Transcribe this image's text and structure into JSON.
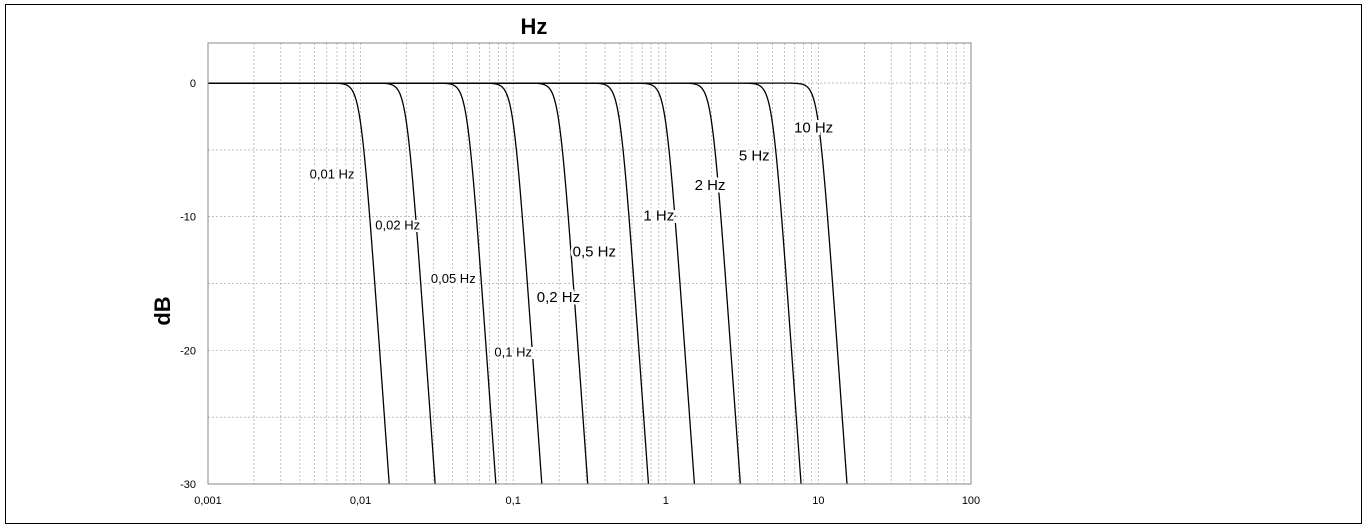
{
  "chart_data": {
    "type": "line",
    "title": "Hz",
    "xlabel": "",
    "ylabel": "dB",
    "xscale": "log",
    "xlim": [
      0.001,
      100
    ],
    "ylim": [
      -30,
      3
    ],
    "x_ticks": [
      "0,001",
      "0,01",
      "0,1",
      "1",
      "10",
      "100"
    ],
    "x_tick_values": [
      0.001,
      0.01,
      0.1,
      1,
      10,
      100
    ],
    "y_ticks": [
      "0",
      "-10",
      "-20",
      "-30"
    ],
    "y_tick_values": [
      0,
      -10,
      -20,
      -30
    ],
    "grid": true,
    "filter_order": 8,
    "series": [
      {
        "name": "0,01 Hz",
        "cutoff": 0.01,
        "label_x": 0.0065,
        "label_y": -6.8,
        "label_size": 13
      },
      {
        "name": "0,02 Hz",
        "cutoff": 0.02,
        "label_x": 0.0175,
        "label_y": -10.6,
        "label_size": 13
      },
      {
        "name": "0,05 Hz",
        "cutoff": 0.05,
        "label_x": 0.0405,
        "label_y": -14.6,
        "label_size": 13
      },
      {
        "name": "0,1 Hz",
        "cutoff": 0.1,
        "label_x": 0.1,
        "label_y": -20.1,
        "label_size": 13
      },
      {
        "name": "0,2 Hz",
        "cutoff": 0.2,
        "label_x": 0.198,
        "label_y": -16.0,
        "label_size": 15
      },
      {
        "name": "0,5 Hz",
        "cutoff": 0.5,
        "label_x": 0.34,
        "label_y": -12.6,
        "label_size": 15
      },
      {
        "name": "1 Hz",
        "cutoff": 1,
        "label_x": 0.9,
        "label_y": -9.9,
        "label_size": 15
      },
      {
        "name": "2 Hz",
        "cutoff": 2,
        "label_x": 1.95,
        "label_y": -7.6,
        "label_size": 15
      },
      {
        "name": "5 Hz",
        "cutoff": 5,
        "label_x": 3.8,
        "label_y": -5.4,
        "label_size": 15
      },
      {
        "name": "10 Hz",
        "cutoff": 10,
        "label_x": 9.3,
        "label_y": -3.3,
        "label_size": 15
      }
    ]
  }
}
